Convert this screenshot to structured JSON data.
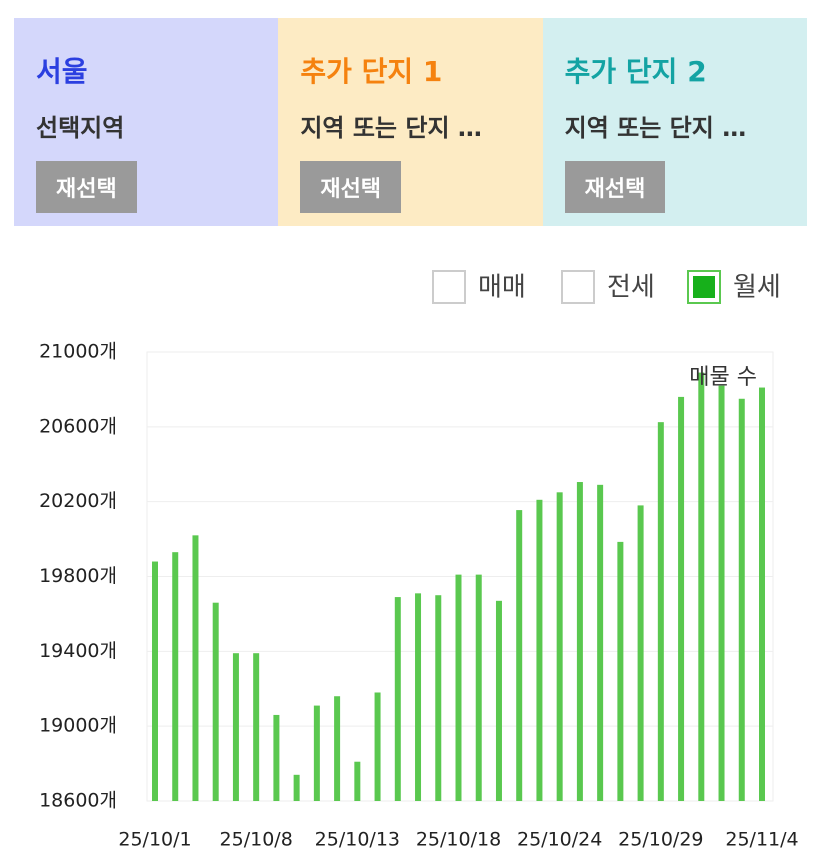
{
  "panels": [
    {
      "title": "서울",
      "subtitle": "선택지역",
      "button": "재선택",
      "bg": "#d4d7fb",
      "color": "#2b3fe0"
    },
    {
      "title": "추가 단지 1",
      "subtitle": "지역 또는 단지 …",
      "button": "재선택",
      "bg": "#fdebc4",
      "color": "#f5820f"
    },
    {
      "title": "추가 단지 2",
      "subtitle": "지역 또는 단지 …",
      "button": "재선택",
      "bg": "#d3eff0",
      "color": "#13a3a3"
    }
  ],
  "legend": [
    {
      "label": "매매",
      "checked": false
    },
    {
      "label": "전세",
      "checked": false
    },
    {
      "label": "월세",
      "checked": true
    }
  ],
  "chart_data": {
    "type": "bar",
    "annotation": "매물 수",
    "color": "#5ac84f",
    "categories": [
      "25/10/1",
      null,
      null,
      null,
      null,
      "25/10/8",
      null,
      null,
      null,
      null,
      "25/10/13",
      null,
      null,
      null,
      null,
      "25/10/18",
      null,
      null,
      null,
      null,
      "25/10/24",
      null,
      null,
      null,
      null,
      "25/10/29",
      null,
      null,
      null,
      null,
      "25/11/4"
    ],
    "values": [
      19880,
      19930,
      20020,
      19660,
      19390,
      19390,
      19060,
      18740,
      19110,
      19160,
      18810,
      19180,
      19690,
      19710,
      19700,
      19810,
      19810,
      19670,
      20155,
      20210,
      20250,
      20305,
      20290,
      19985,
      20180,
      20625,
      20760,
      20890,
      20820,
      20750,
      20810
    ],
    "ylim": [
      18600,
      21000
    ],
    "yticks": [
      {
        "value": 18600,
        "label": "18600개"
      },
      {
        "value": 19000,
        "label": "19000개"
      },
      {
        "value": 19400,
        "label": "19400개"
      },
      {
        "value": 19800,
        "label": "19800개"
      },
      {
        "value": 20200,
        "label": "20200개"
      },
      {
        "value": 20600,
        "label": "20600개"
      },
      {
        "value": 21000,
        "label": "21000개"
      }
    ],
    "grid": true
  }
}
